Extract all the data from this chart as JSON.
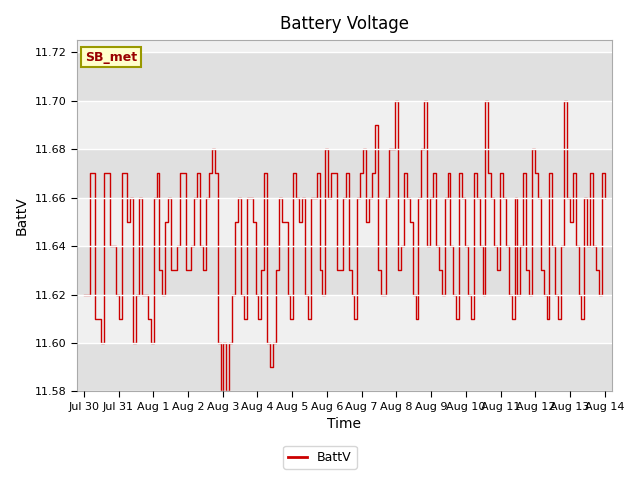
{
  "title": "Battery Voltage",
  "xlabel": "Time",
  "ylabel": "BattV",
  "ylim": [
    11.58,
    11.725
  ],
  "yticks": [
    11.58,
    11.6,
    11.62,
    11.64,
    11.66,
    11.68,
    11.7,
    11.72
  ],
  "xtick_labels": [
    "Jul 30",
    "Jul 31",
    "Aug 1",
    "Aug 2",
    "Aug 3",
    "Aug 4",
    "Aug 5",
    "Aug 6",
    "Aug 7",
    "Aug 8",
    "Aug 9",
    "Aug 10",
    "Aug 11",
    "Aug 12",
    "Aug 13",
    "Aug 14"
  ],
  "line_color": "#cc0000",
  "line_width": 1.0,
  "legend_label": "BattV",
  "annotation_text": "SB_met",
  "annotation_bgcolor": "#ffffcc",
  "annotation_edgecolor": "#999900",
  "annotation_textcolor": "#990000",
  "plot_bgcolor": "#f0f0f0",
  "band_color_light": "#f0f0f0",
  "band_color_dark": "#e0e0e0",
  "fig_bgcolor": "#ffffff",
  "title_fontsize": 12,
  "axis_fontsize": 10,
  "tick_fontsize": 8,
  "data_values": [
    11.62,
    11.62,
    11.67,
    11.67,
    11.61,
    11.61,
    11.6,
    11.67,
    11.67,
    11.64,
    11.64,
    11.62,
    11.61,
    11.67,
    11.67,
    11.65,
    11.66,
    11.6,
    11.62,
    11.66,
    11.62,
    11.62,
    11.61,
    11.6,
    11.66,
    11.67,
    11.63,
    11.62,
    11.65,
    11.66,
    11.63,
    11.63,
    11.64,
    11.67,
    11.67,
    11.63,
    11.63,
    11.64,
    11.66,
    11.67,
    11.64,
    11.63,
    11.66,
    11.67,
    11.68,
    11.67,
    11.6,
    11.58,
    11.6,
    11.58,
    11.6,
    11.62,
    11.65,
    11.66,
    11.62,
    11.61,
    11.66,
    11.66,
    11.65,
    11.62,
    11.61,
    11.63,
    11.67,
    11.6,
    11.59,
    11.6,
    11.63,
    11.66,
    11.65,
    11.65,
    11.62,
    11.61,
    11.67,
    11.66,
    11.65,
    11.66,
    11.62,
    11.61,
    11.66,
    11.66,
    11.67,
    11.63,
    11.62,
    11.68,
    11.66,
    11.67,
    11.67,
    11.63,
    11.63,
    11.66,
    11.67,
    11.63,
    11.62,
    11.61,
    11.66,
    11.67,
    11.68,
    11.65,
    11.66,
    11.67,
    11.69,
    11.63,
    11.62,
    11.62,
    11.66,
    11.68,
    11.68,
    11.7,
    11.63,
    11.64,
    11.67,
    11.66,
    11.65,
    11.62,
    11.61,
    11.66,
    11.68,
    11.7,
    11.64,
    11.66,
    11.67,
    11.64,
    11.63,
    11.62,
    11.66,
    11.67,
    11.64,
    11.62,
    11.61,
    11.67,
    11.66,
    11.64,
    11.62,
    11.61,
    11.67,
    11.66,
    11.64,
    11.62,
    11.7,
    11.67,
    11.66,
    11.64,
    11.63,
    11.67,
    11.66,
    11.64,
    11.62,
    11.61,
    11.66,
    11.62,
    11.64,
    11.67,
    11.63,
    11.62,
    11.68,
    11.67,
    11.66,
    11.63,
    11.62,
    11.61,
    11.67,
    11.64,
    11.62,
    11.61,
    11.64,
    11.7,
    11.66,
    11.65,
    11.67,
    11.64,
    11.62,
    11.61,
    11.66,
    11.64,
    11.67,
    11.64,
    11.63,
    11.62,
    11.67,
    11.66
  ]
}
